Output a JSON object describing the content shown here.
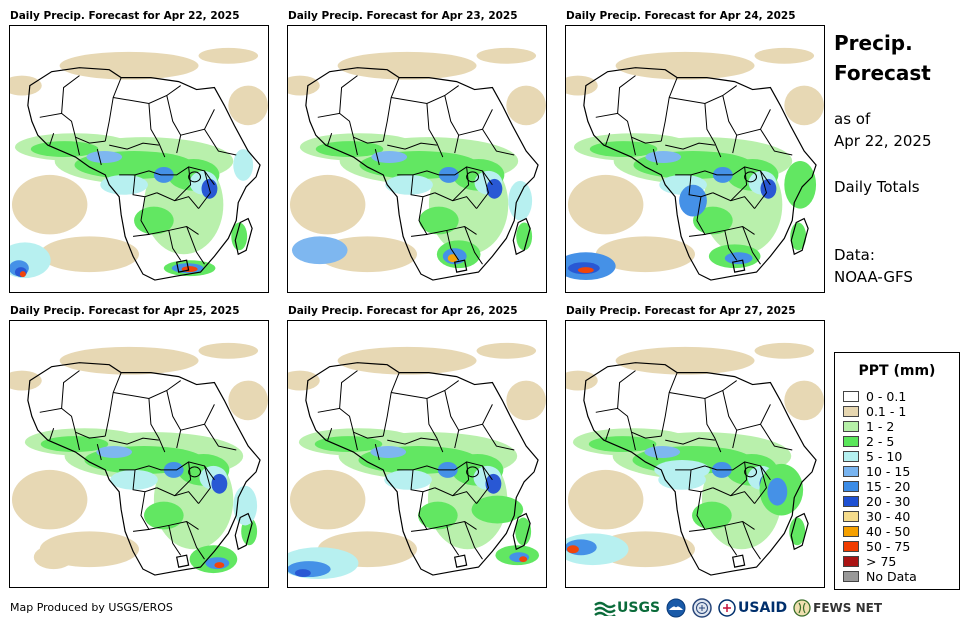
{
  "panels": [
    {
      "title": "Daily Precip. Forecast for Apr 22, 2025"
    },
    {
      "title": "Daily Precip. Forecast for Apr 23, 2025"
    },
    {
      "title": "Daily Precip. Forecast for Apr 24, 2025"
    },
    {
      "title": "Daily Precip. Forecast for Apr 25, 2025"
    },
    {
      "title": "Daily Precip. Forecast for Apr 26, 2025"
    },
    {
      "title": "Daily Precip. Forecast for Apr 27, 2025"
    }
  ],
  "side": {
    "title_line1": "Precip.",
    "title_line2": "Forecast",
    "as_of_label": "as of",
    "as_of_date": "Apr 22, 2025",
    "totals": "Daily Totals",
    "data_label": "Data:",
    "data_source": "NOAA-GFS"
  },
  "legend": {
    "title": "PPT (mm)",
    "items": [
      {
        "label": "0 - 0.1",
        "color": "#ffffff"
      },
      {
        "label": "0.1 - 1",
        "color": "#e6d6b0"
      },
      {
        "label": "1 - 2",
        "color": "#b6f0a8"
      },
      {
        "label": "2 - 5",
        "color": "#5ae65a"
      },
      {
        "label": "5 - 10",
        "color": "#b4f0f0"
      },
      {
        "label": "10 - 15",
        "color": "#78b4f0"
      },
      {
        "label": "15 - 20",
        "color": "#3c8ce6"
      },
      {
        "label": "20 - 30",
        "color": "#1e50d2"
      },
      {
        "label": "30 - 40",
        "color": "#f5dc8c"
      },
      {
        "label": "40 - 50",
        "color": "#f5a000"
      },
      {
        "label": "50 - 75",
        "color": "#f03c00"
      },
      {
        "label": "> 75",
        "color": "#aa1414"
      },
      {
        "label": "No Data",
        "color": "#999999"
      }
    ]
  },
  "footer": {
    "credit": "Map Produced by USGS/EROS",
    "logo_usgs": "USGS",
    "logo_usaid": "USAID",
    "logo_fews": "FEWS NET"
  }
}
